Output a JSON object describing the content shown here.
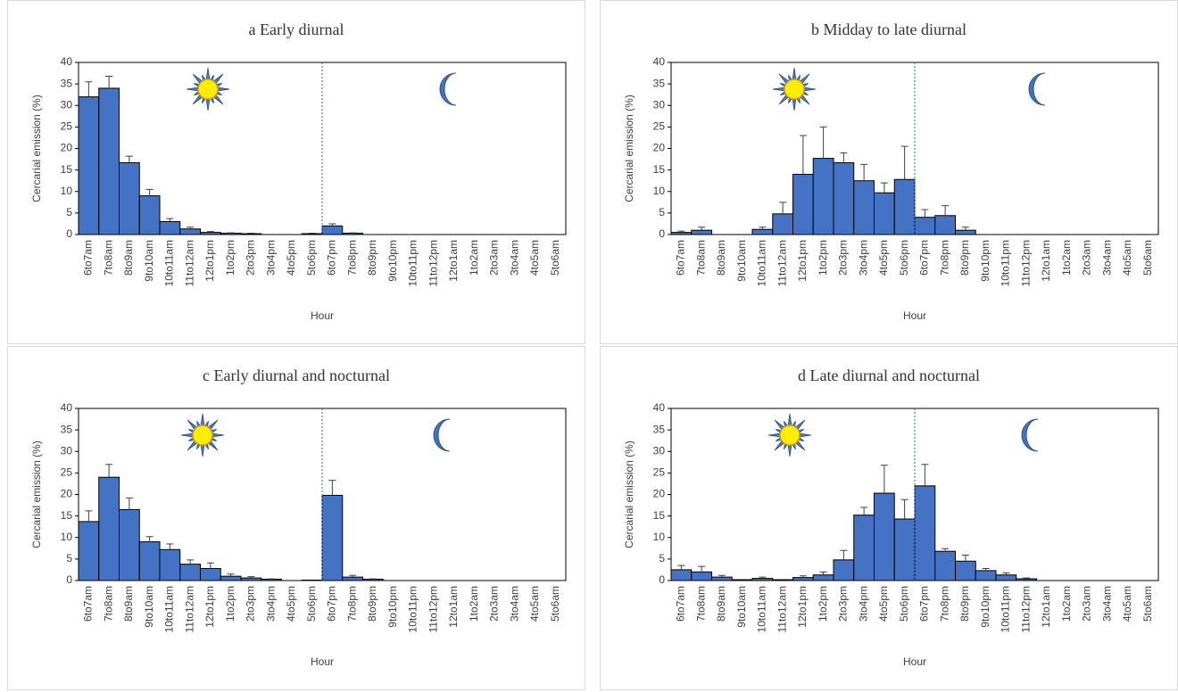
{
  "chart_data": [
    {
      "type": "bar",
      "panel": "a",
      "title": "Early diurnal",
      "x_label": "Hour",
      "y_label": "Cercarial emission (%)",
      "color": "#4472c4",
      "categories": [
        "6to7am",
        "7to8am",
        "8to9am",
        "9to10am",
        "10to11am",
        "11to12am",
        "12to1pm",
        "1to2pm",
        "2to3pm",
        "3to4pm",
        "4to5pm",
        "5to6pm",
        "6to7pm",
        "7to8pm",
        "8to9pm",
        "9to10pm",
        "10to11pm",
        "11to12pm",
        "12to1am",
        "1to2am",
        "2to3am",
        "3to4am",
        "4to5am",
        "5to6am"
      ],
      "values": [
        32,
        34,
        16.7,
        9,
        3,
        1.3,
        0.5,
        0.3,
        0.2,
        0,
        0,
        0.2,
        2,
        0.3,
        0,
        0,
        0,
        0,
        0,
        0,
        0,
        0,
        0,
        0
      ],
      "errors": [
        3.5,
        2.8,
        1.5,
        1.5,
        0.7,
        0.4,
        0.2,
        0.1,
        0.1,
        null,
        null,
        0.1,
        0.5,
        0.1,
        null,
        null,
        null,
        null,
        null,
        null,
        null,
        null,
        null,
        null
      ],
      "ylim": [
        0,
        40
      ],
      "yticks": [
        0,
        5,
        10,
        15,
        20,
        25,
        30,
        35,
        40
      ]
    },
    {
      "type": "bar",
      "panel": "b",
      "title": "Midday to late diurnal",
      "x_label": "Hour",
      "y_label": "Cercarial emission (%)",
      "color": "#4472c4",
      "categories": [
        "6to7am",
        "7to8am",
        "8to9am",
        "9to10am",
        "10to11am",
        "11to12am",
        "12to1pm",
        "1to2pm",
        "2to3pm",
        "3to4pm",
        "4to5pm",
        "5to6pm",
        "6to7pm",
        "7to8pm",
        "8to9pm",
        "9to10pm",
        "10to11pm",
        "11to12pm",
        "12to1am",
        "1to2am",
        "2to3am",
        "3to4am",
        "4to5am",
        "5to6am"
      ],
      "values": [
        0.5,
        1,
        0,
        0,
        1.2,
        4.8,
        14,
        17.7,
        16.7,
        12.5,
        9.7,
        12.8,
        4,
        4.4,
        1,
        0,
        0,
        0,
        0,
        0,
        0,
        0,
        0,
        0
      ],
      "errors": [
        0.3,
        0.7,
        null,
        null,
        0.5,
        2.7,
        9,
        7.3,
        2.3,
        3.8,
        2.3,
        7.7,
        1.8,
        2.3,
        0.7,
        null,
        null,
        null,
        null,
        null,
        null,
        null,
        null,
        null
      ],
      "ylim": [
        0,
        40
      ],
      "yticks": [
        0,
        5,
        10,
        15,
        20,
        25,
        30,
        35,
        40
      ]
    },
    {
      "type": "bar",
      "panel": "c",
      "title": "Early diurnal and nocturnal",
      "x_label": "Hour",
      "y_label": "Cercarial emission (%)",
      "color": "#4472c4",
      "categories": [
        "6to7am",
        "7to8am",
        "8to9am",
        "9to10am",
        "10to11am",
        "11to12am",
        "12to1pm",
        "1to2pm",
        "2to3pm",
        "3to4pm",
        "4to5pm",
        "5to6pm",
        "6to7pm",
        "7to8pm",
        "8to9pm",
        "9to10pm",
        "10to11pm",
        "11to12pm",
        "12to1am",
        "1to2am",
        "2to3am",
        "3to4am",
        "4to5am",
        "5to6am"
      ],
      "values": [
        13.7,
        24,
        16.5,
        9,
        7.2,
        3.8,
        2.8,
        1,
        0.6,
        0.3,
        0,
        0.1,
        19.8,
        0.8,
        0.3,
        0,
        0,
        0,
        0,
        0,
        0,
        0,
        0,
        0
      ],
      "errors": [
        2.5,
        3,
        2.7,
        1.2,
        1.3,
        1,
        1.3,
        0.5,
        0.3,
        0.1,
        null,
        null,
        3.5,
        0.4,
        0.1,
        null,
        null,
        null,
        null,
        null,
        null,
        null,
        null,
        null
      ],
      "ylim": [
        0,
        40
      ],
      "yticks": [
        0,
        5,
        10,
        15,
        20,
        25,
        30,
        35,
        40
      ]
    },
    {
      "type": "bar",
      "panel": "d",
      "title": "Late diurnal and nocturnal",
      "x_label": "Hour",
      "y_label": "Cercarial emission (%)",
      "color": "#4472c4",
      "categories": [
        "6to7am",
        "7to8am",
        "8to9am",
        "9to10am",
        "10to11am",
        "11to12am",
        "12to1pm",
        "1to2pm",
        "2to3pm",
        "3to4pm",
        "4to5pm",
        "5to6pm",
        "6to7pm",
        "7to8pm",
        "8to9pm",
        "9to10pm",
        "10to11pm",
        "11to12pm",
        "12to1am",
        "1to2am",
        "2to3am",
        "3to4am",
        "4to5am",
        "5to6am"
      ],
      "values": [
        2.5,
        2,
        0.8,
        0.2,
        0.5,
        0.2,
        0.7,
        1.3,
        4.8,
        15.2,
        20.3,
        14.3,
        22,
        6.8,
        4.5,
        2.3,
        1.3,
        0.4,
        0,
        0,
        0,
        0,
        0,
        0
      ],
      "errors": [
        1,
        1.3,
        0.4,
        null,
        0.3,
        null,
        0.4,
        0.7,
        2.2,
        1.8,
        6.5,
        4.5,
        5,
        0.6,
        1.4,
        0.5,
        0.5,
        0.2,
        null,
        null,
        null,
        null,
        null,
        null
      ],
      "ylim": [
        0,
        40
      ],
      "yticks": [
        0,
        5,
        10,
        15,
        20,
        25,
        30,
        35,
        40
      ]
    }
  ]
}
